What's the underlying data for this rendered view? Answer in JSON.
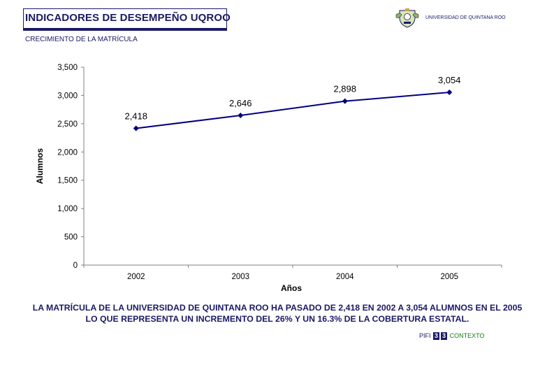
{
  "header": {
    "title": "INDICADORES DE DESEMPEÑO UQROO",
    "subtitle": "CRECIMIENTO DE LA MATRÍCULA",
    "university": "UNIVERSIDAD DE QUINTANA ROO"
  },
  "chart_data": {
    "type": "line",
    "categories": [
      "2002",
      "2003",
      "2004",
      "2005"
    ],
    "series": [
      {
        "values": [
          2418,
          2646,
          2898,
          3054
        ],
        "color": "#000080"
      }
    ],
    "data_labels": [
      "2,418",
      "2,646",
      "2,898",
      "3,054"
    ],
    "xlabel": "Años",
    "ylabel": "Alumnos",
    "ylim": [
      0,
      3500
    ],
    "yticks": [
      0,
      500,
      1000,
      1500,
      2000,
      2500,
      3000,
      3500
    ],
    "ytick_labels": [
      "0",
      "500",
      "1,000",
      "1,500",
      "2,000",
      "2,500",
      "3,000",
      "3,500"
    ],
    "grid": false
  },
  "caption": "LA MATRÍCULA DE LA UNIVERSIDAD DE QUINTANA ROO HA PASADO DE 2,418 EN 2002 A 3,054 ALUMNOS EN EL 2005 LO QUE REPRESENTA UN INCREMENTO DEL 26% Y UN 16.3% DE LA COBERTURA ESTATAL.",
  "footer": {
    "pifi": "PIFI",
    "box1": "3",
    "box2": "3",
    "context": "CONTEXTO"
  },
  "colors": {
    "brand": "#1a1a66",
    "series": "#000080",
    "context": "#1a7a1a"
  }
}
